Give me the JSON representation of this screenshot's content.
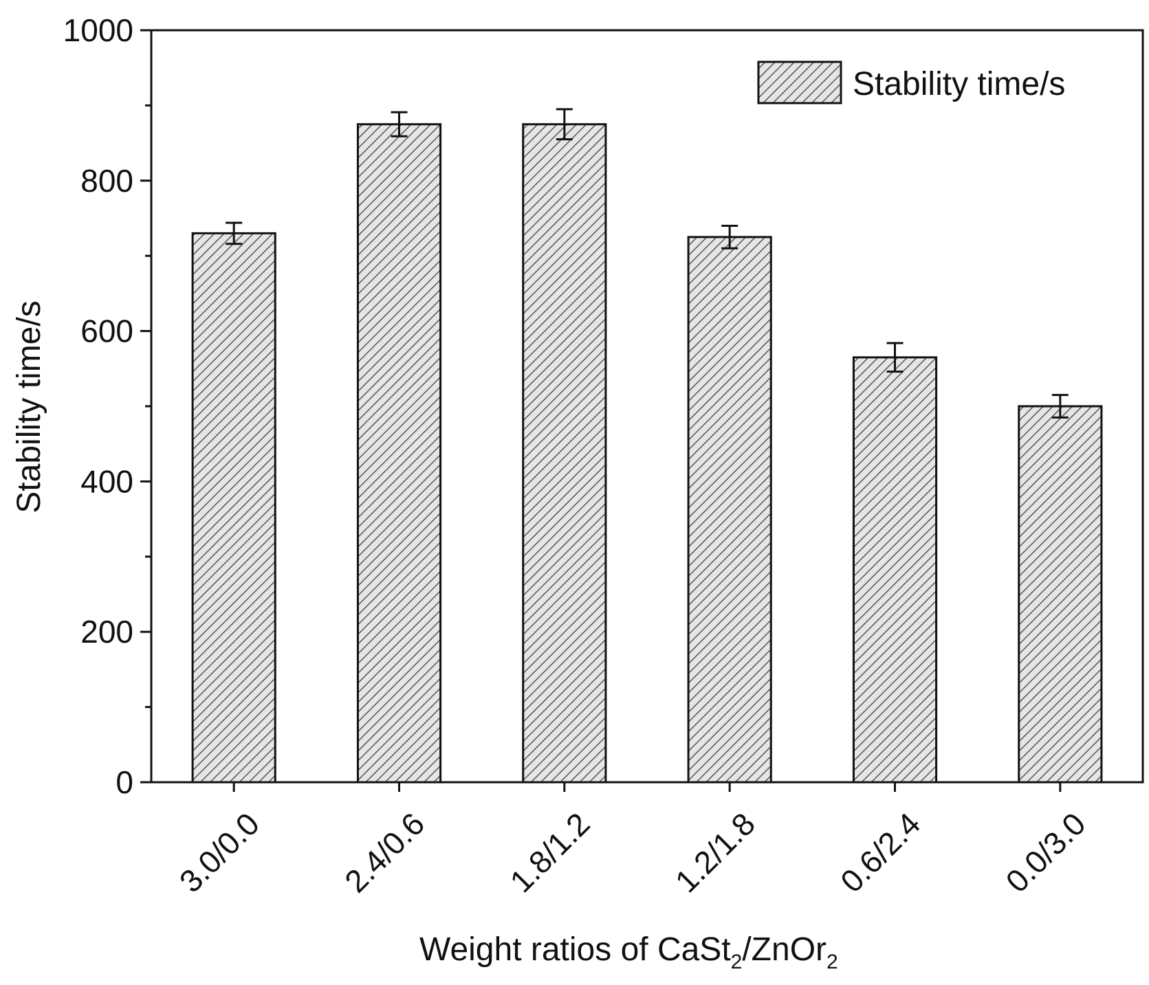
{
  "chart_data": {
    "type": "bar",
    "title": "",
    "categories": [
      "3.0/0.0",
      "2.4/0.6",
      "1.8/1.2",
      "1.2/1.8",
      "0.6/2.4",
      "0.0/3.0"
    ],
    "series": [
      {
        "name": "Stability time/s",
        "values": [
          730,
          875,
          875,
          725,
          565,
          500
        ],
        "errors": [
          14,
          16,
          20,
          15,
          19,
          15
        ],
        "pattern": "diagonal-hatch"
      }
    ],
    "xlabel": {
      "prefix": "Weight ratios of CaSt",
      "sub1": "2",
      "middle": "/ZnOr",
      "sub2": "2"
    },
    "ylabel": "Stability time/s",
    "ylim": [
      0,
      1000
    ],
    "yticks": [
      0,
      200,
      400,
      600,
      800,
      1000
    ],
    "y_minor_step": 100,
    "grid": false,
    "legend": {
      "position": "top-right",
      "label": "Stability time/s"
    },
    "colors": {
      "bar_fill": "#e6e6e6",
      "hatch": "#555555",
      "stroke": "#111111"
    }
  }
}
